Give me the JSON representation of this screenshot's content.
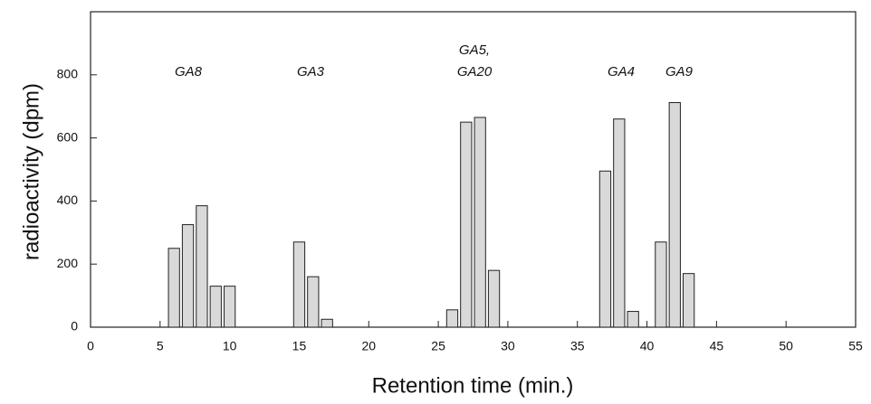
{
  "chart_data": {
    "type": "bar",
    "x_label": "Retention time (min.)",
    "y_label": "radioactivity  (dpm)",
    "annotations": [
      "GA8",
      "GA3",
      "GA5,",
      "GA20",
      "GA4",
      "GA9"
    ],
    "x": [
      6,
      7,
      8,
      9,
      10,
      15,
      16,
      17,
      26,
      27,
      28,
      29,
      37,
      38,
      39,
      41,
      42,
      43
    ],
    "values": [
      250,
      325,
      385,
      130,
      130,
      270,
      160,
      25,
      55,
      650,
      665,
      180,
      495,
      660,
      50,
      270,
      712,
      170
    ],
    "color": "#d9d9d9",
    "xlim": [
      0,
      55
    ],
    "xticks": [
      0,
      5,
      10,
      15,
      20,
      25,
      30,
      35,
      40,
      45,
      50,
      55
    ],
    "ylim": [
      0,
      1000
    ],
    "yticks": [
      0,
      200,
      400,
      600,
      800
    ],
    "grid": false
  }
}
